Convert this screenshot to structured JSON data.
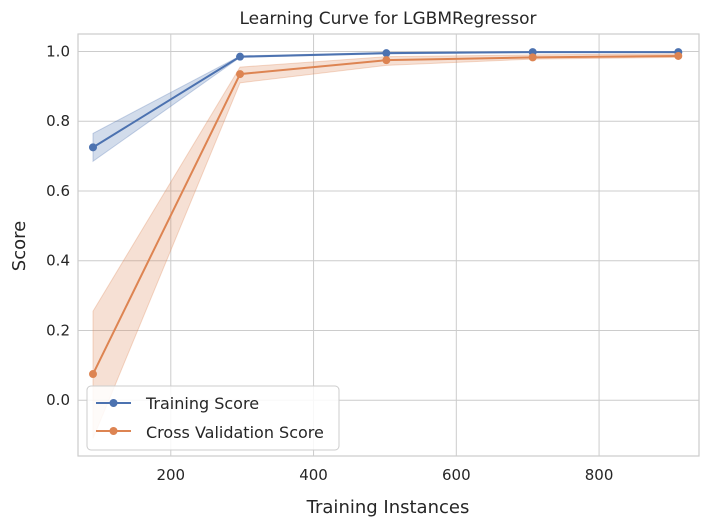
{
  "chart_data": {
    "type": "line",
    "title": "Learning Curve for LGBMRegressor",
    "xlabel": "Training Instances",
    "ylabel": "Score",
    "xlim": [
      70,
      940
    ],
    "ylim": [
      -0.16,
      1.05
    ],
    "xticks": [
      200,
      400,
      600,
      800
    ],
    "xtick_labels": [
      "200",
      "400",
      "600",
      "800"
    ],
    "yticks": [
      0.0,
      0.2,
      0.4,
      0.6,
      0.8,
      1.0
    ],
    "ytick_labels": [
      "0.0",
      "0.2",
      "0.4",
      "0.6",
      "0.8",
      "1.0"
    ],
    "grid": true,
    "legend_position": "lower-left",
    "x": [
      91,
      297,
      502,
      707,
      911
    ],
    "series": [
      {
        "name": "Training Score",
        "color": "#4c72b0",
        "values": [
          0.725,
          0.985,
          0.995,
          0.998,
          0.998
        ],
        "lower": [
          0.685,
          0.983,
          0.993,
          0.997,
          0.997
        ],
        "upper": [
          0.765,
          0.987,
          0.997,
          0.999,
          0.999
        ]
      },
      {
        "name": "Cross Validation Score",
        "color": "#dd8452",
        "values": [
          0.075,
          0.935,
          0.975,
          0.983,
          0.987
        ],
        "lower": [
          -0.11,
          0.91,
          0.96,
          0.978,
          0.983
        ],
        "upper": [
          0.255,
          0.955,
          0.985,
          0.99,
          0.993
        ]
      }
    ]
  }
}
